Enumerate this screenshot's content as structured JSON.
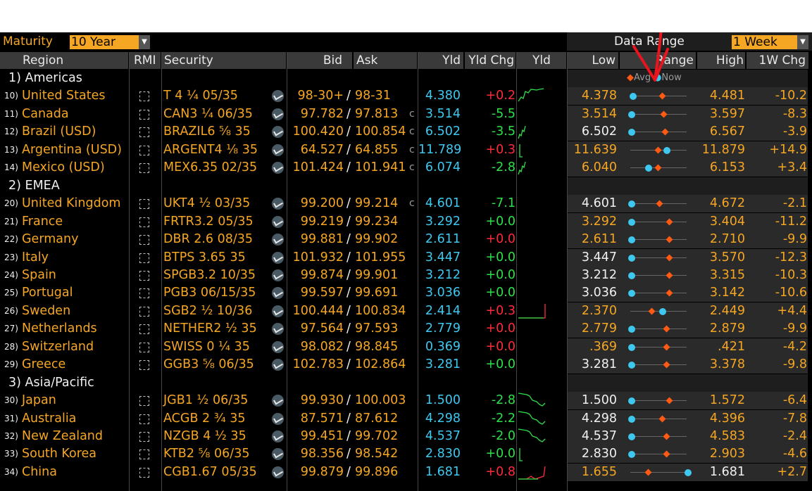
{
  "toolbar": {
    "maturity_label": "Maturity",
    "maturity_value": "10 Year",
    "data_range_label": "Data Range",
    "data_range_value": "1 Week"
  },
  "columns": {
    "region": "Region",
    "rmi": "RMI",
    "security": "Security",
    "bid": "Bid",
    "ask": "Ask",
    "yld": "Yld",
    "yld_chg": "Yld Chg",
    "yld_chart": "Yld",
    "low": "Low",
    "range": "Range",
    "high": "High",
    "chg_1w": "1W Chg"
  },
  "range_legend": {
    "avg": "Avg",
    "now": "Now"
  },
  "colors": {
    "accent": "#f5a623",
    "positive": "#2ee04a",
    "negative": "#ff2b3b",
    "yield": "#3ec8f0",
    "avg_marker": "#ff5a14"
  },
  "rows": [
    {
      "kind": "section",
      "label": "1) Americas"
    },
    {
      "kind": "bond",
      "num": "10)",
      "region": "United States",
      "security": "T 4 ¼ 05/35",
      "bid": "98-30+",
      "ask": "98-31",
      "c": "",
      "yld": "4.380",
      "chg": "+0.2",
      "chg_color": "red",
      "low": "4.378",
      "low_color": "orange",
      "high": "4.481",
      "high_color": "orange",
      "w1": "-10.2",
      "now_pct": 0.02,
      "avg_pct": 0.55,
      "spark": "up"
    },
    {
      "kind": "bond",
      "num": "11)",
      "region": "Canada",
      "security": "CAN3 ¼ 06/35",
      "bid": "97.782",
      "ask": "97.813",
      "c": "c",
      "yld": "3.514",
      "chg": "-5.5",
      "chg_color": "green",
      "low": "3.514",
      "low_color": "orange",
      "high": "3.597",
      "high_color": "orange",
      "w1": "-8.3",
      "now_pct": 0.0,
      "avg_pct": 0.58,
      "spark": ""
    },
    {
      "kind": "bond",
      "num": "12)",
      "region": "Brazil (USD)",
      "security": "BRAZIL6 ⅝ 35",
      "bid": "100.420",
      "ask": "100.854",
      "c": "c",
      "yld": "6.502",
      "chg": "-3.5",
      "chg_color": "green",
      "low": "6.502",
      "low_color": "white",
      "high": "6.567",
      "high_color": "orange",
      "w1": "-3.9",
      "now_pct": 0.0,
      "avg_pct": 0.6,
      "spark": "small"
    },
    {
      "kind": "bond",
      "num": "13)",
      "region": "Argentina (USD)",
      "security": "ARGENT4 ⅛ 35",
      "bid": "64.527",
      "ask": "64.855",
      "c": "c",
      "yld": "11.789",
      "chg": "+0.3",
      "chg_color": "red",
      "low": "11.639",
      "low_color": "orange",
      "high": "11.879",
      "high_color": "orange",
      "w1": "+14.9",
      "now_pct": 0.62,
      "avg_pct": 0.48,
      "spark": "flat"
    },
    {
      "kind": "bond",
      "num": "14)",
      "region": "Mexico (USD)",
      "security": "MEX6.35 02/35",
      "bid": "101.424",
      "ask": "101.941",
      "c": "c",
      "yld": "6.074",
      "chg": "-2.8",
      "chg_color": "green",
      "low": "6.040",
      "low_color": "orange",
      "high": "6.153",
      "high_color": "orange",
      "w1": "+3.4",
      "now_pct": 0.3,
      "avg_pct": 0.48,
      "spark": "small"
    },
    {
      "kind": "section",
      "label": "2) EMEA"
    },
    {
      "kind": "bond",
      "num": "20)",
      "region": "United Kingdom",
      "security": "UKT4 ½ 03/35",
      "bid": "99.200",
      "ask": "99.214",
      "c": "c",
      "yld": "4.601",
      "chg": "-7.1",
      "chg_color": "green",
      "low": "4.601",
      "low_color": "white",
      "high": "4.672",
      "high_color": "orange",
      "w1": "-2.1",
      "now_pct": 0.0,
      "avg_pct": 0.5,
      "spark": ""
    },
    {
      "kind": "bond",
      "num": "21)",
      "region": "France",
      "security": "FRTR3.2 05/35",
      "bid": "99.219",
      "ask": "99.234",
      "c": "",
      "yld": "3.292",
      "chg": "+0.0",
      "chg_color": "green",
      "low": "3.292",
      "low_color": "orange",
      "high": "3.404",
      "high_color": "orange",
      "w1": "-11.2",
      "now_pct": 0.0,
      "avg_pct": 0.68,
      "spark": ""
    },
    {
      "kind": "bond",
      "num": "22)",
      "region": "Germany",
      "security": "DBR 2.6 08/35",
      "bid": "99.881",
      "ask": "99.902",
      "c": "",
      "yld": "2.611",
      "chg": "+0.0",
      "chg_color": "red",
      "low": "2.611",
      "low_color": "orange",
      "high": "2.710",
      "high_color": "orange",
      "w1": "-9.9",
      "now_pct": 0.0,
      "avg_pct": 0.68,
      "spark": ""
    },
    {
      "kind": "bond",
      "num": "23)",
      "region": "Italy",
      "security": "BTPS 3.65 35",
      "bid": "101.932",
      "ask": "101.955",
      "c": "",
      "yld": "3.447",
      "chg": "+0.0",
      "chg_color": "green",
      "low": "3.447",
      "low_color": "white",
      "high": "3.570",
      "high_color": "orange",
      "w1": "-12.3",
      "now_pct": 0.0,
      "avg_pct": 0.68,
      "spark": ""
    },
    {
      "kind": "bond",
      "num": "24)",
      "region": "Spain",
      "security": "SPGB3.2 10/35",
      "bid": "99.874",
      "ask": "99.901",
      "c": "",
      "yld": "3.212",
      "chg": "+0.0",
      "chg_color": "green",
      "low": "3.212",
      "low_color": "white",
      "high": "3.315",
      "high_color": "orange",
      "w1": "-10.3",
      "now_pct": 0.0,
      "avg_pct": 0.68,
      "spark": ""
    },
    {
      "kind": "bond",
      "num": "25)",
      "region": "Portugal",
      "security": "PGB3 06/15/35",
      "bid": "99.597",
      "ask": "99.691",
      "c": "",
      "yld": "3.036",
      "chg": "+0.0",
      "chg_color": "green",
      "low": "3.036",
      "low_color": "white",
      "high": "3.142",
      "high_color": "orange",
      "w1": "-10.6",
      "now_pct": 0.0,
      "avg_pct": 0.68,
      "spark": ""
    },
    {
      "kind": "bond",
      "num": "26)",
      "region": "Sweden",
      "security": "SGB2 ½ 10/36",
      "bid": "100.444",
      "ask": "100.834",
      "c": "",
      "yld": "2.414",
      "chg": "+0.3",
      "chg_color": "red",
      "low": "2.370",
      "low_color": "orange",
      "high": "2.449",
      "high_color": "orange",
      "w1": "+4.4",
      "now_pct": 0.55,
      "avg_pct": 0.36,
      "spark": "step"
    },
    {
      "kind": "bond",
      "num": "27)",
      "region": "Netherlands",
      "security": "NETHER2 ½ 35",
      "bid": "97.564",
      "ask": "97.593",
      "c": "",
      "yld": "2.779",
      "chg": "+0.0",
      "chg_color": "red",
      "low": "2.779",
      "low_color": "orange",
      "high": "2.879",
      "high_color": "orange",
      "w1": "-9.9",
      "now_pct": 0.0,
      "avg_pct": 0.62,
      "spark": ""
    },
    {
      "kind": "bond",
      "num": "28)",
      "region": "Switzerland",
      "security": "SWISS 0 ¼ 35",
      "bid": "98.082",
      "ask": "98.845",
      "c": "",
      "yld": "0.369",
      "chg": "+0.0",
      "chg_color": "red",
      "low": ".369",
      "low_color": "orange",
      "high": ".421",
      "high_color": "orange",
      "w1": "-4.2",
      "now_pct": 0.0,
      "avg_pct": 0.62,
      "spark": ""
    },
    {
      "kind": "bond",
      "num": "29)",
      "region": "Greece",
      "security": "GGB3 ⅝ 06/35",
      "bid": "102.783",
      "ask": "102.864",
      "c": "",
      "yld": "3.281",
      "chg": "+0.0",
      "chg_color": "green",
      "low": "3.281",
      "low_color": "white",
      "high": "3.378",
      "high_color": "orange",
      "w1": "-9.8",
      "now_pct": 0.0,
      "avg_pct": 0.62,
      "spark": ""
    },
    {
      "kind": "section",
      "label": "3) Asia/Pacific"
    },
    {
      "kind": "bond",
      "num": "30)",
      "region": "Japan",
      "security": "JGB1 ½ 06/35",
      "bid": "99.930",
      "ask": "100.003",
      "c": "",
      "yld": "1.500",
      "chg": "-2.8",
      "chg_color": "green",
      "low": "1.500",
      "low_color": "white",
      "high": "1.572",
      "high_color": "orange",
      "w1": "-6.4",
      "now_pct": 0.0,
      "avg_pct": 0.68,
      "spark": "down"
    },
    {
      "kind": "bond",
      "num": "31)",
      "region": "Australia",
      "security": "ACGB 2 ¾ 35",
      "bid": "87.571",
      "ask": "87.612",
      "c": "",
      "yld": "4.298",
      "chg": "-2.2",
      "chg_color": "green",
      "low": "4.298",
      "low_color": "white",
      "high": "4.396",
      "high_color": "orange",
      "w1": "-7.8",
      "now_pct": 0.0,
      "avg_pct": 0.55,
      "spark": "down"
    },
    {
      "kind": "bond",
      "num": "32)",
      "region": "New Zealand",
      "security": "NZGB 4 ½ 35",
      "bid": "99.451",
      "ask": "99.702",
      "c": "",
      "yld": "4.537",
      "chg": "-2.0",
      "chg_color": "green",
      "low": "4.537",
      "low_color": "white",
      "high": "4.583",
      "high_color": "orange",
      "w1": "-2.4",
      "now_pct": 0.0,
      "avg_pct": 0.62,
      "spark": "down"
    },
    {
      "kind": "bond",
      "num": "33)",
      "region": "South Korea",
      "security": "KTB2 ⅝ 06/35",
      "bid": "98.356",
      "ask": "98.542",
      "c": "",
      "yld": "2.830",
      "chg": "+0.0",
      "chg_color": "green",
      "low": "2.830",
      "low_color": "white",
      "high": "2.903",
      "high_color": "orange",
      "w1": "-4.6",
      "now_pct": 0.0,
      "avg_pct": 0.62,
      "spark": "flat"
    },
    {
      "kind": "bond",
      "num": "34)",
      "region": "China",
      "security": "CGB1.67 05/35",
      "bid": "99.879",
      "ask": "99.896",
      "c": "",
      "yld": "1.681",
      "chg": "+0.8",
      "chg_color": "red",
      "low": "1.655",
      "low_color": "orange",
      "high": "1.681",
      "high_color": "white",
      "w1": "+2.7",
      "now_pct": 1.0,
      "avg_pct": 0.3,
      "spark": "upend"
    }
  ]
}
